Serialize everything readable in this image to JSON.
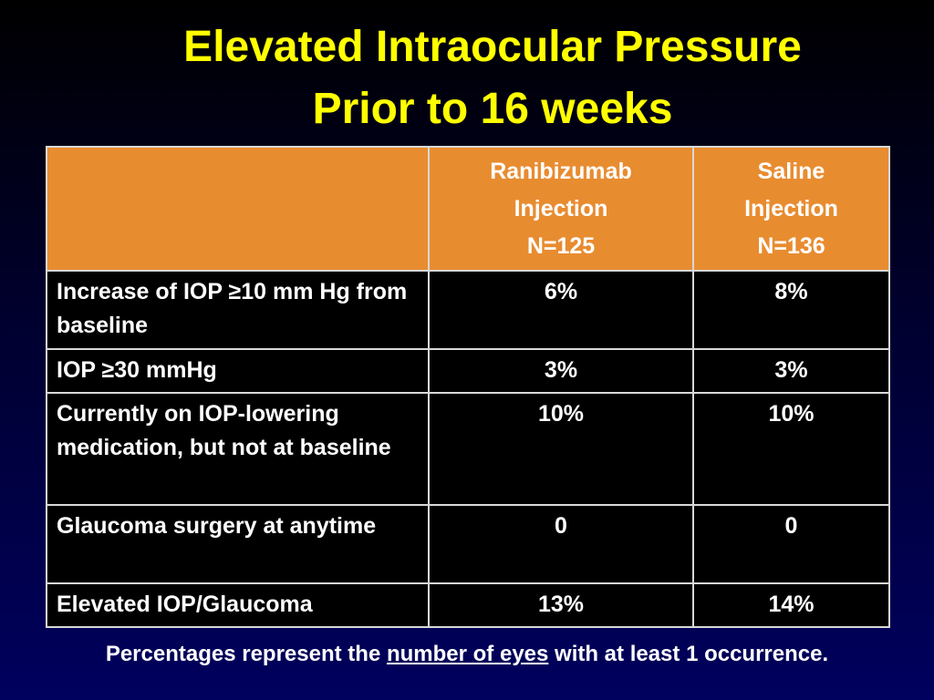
{
  "title": {
    "line1": "Elevated Intraocular Pressure",
    "line2": "Prior to 16 weeks"
  },
  "table": {
    "headers": [
      {
        "lines": []
      },
      {
        "lines": [
          "Ranibizumab",
          "Injection",
          "N=125"
        ]
      },
      {
        "lines": [
          "Saline",
          "Injection",
          "N=136"
        ]
      }
    ],
    "rows": [
      {
        "label": "Increase of IOP ≥10 mm Hg from baseline",
        "ranibizumab": "6%",
        "saline": "8%"
      },
      {
        "label": "IOP ≥30 mmHg",
        "ranibizumab": "3%",
        "saline": "3%"
      },
      {
        "label": "Currently on IOP-lowering medication, but not at baseline",
        "ranibizumab": "10%",
        "saline": "10%"
      },
      {
        "label": "Glaucoma surgery at anytime",
        "ranibizumab": "0",
        "saline": "0"
      },
      {
        "label": "Elevated IOP/Glaucoma",
        "ranibizumab": "13%",
        "saline": "14%"
      }
    ]
  },
  "footnote": {
    "before": "Percentages represent the ",
    "underlined": "number of eyes",
    "after": " with at least 1 occurrence."
  },
  "colors": {
    "title": "#ffff00",
    "header_bg": "#e88c30",
    "cell_bg": "#000000",
    "text": "#ffffff"
  }
}
